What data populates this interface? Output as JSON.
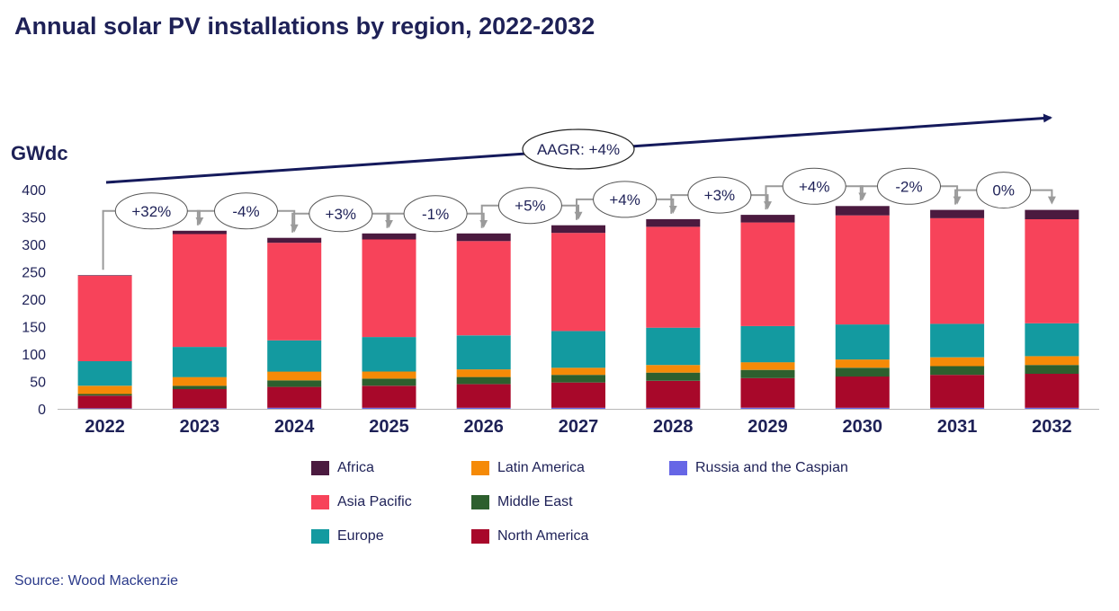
{
  "title": "Annual solar PV installations by region, 2022-2032",
  "source": "Source: Wood Mackenzie",
  "chart_data": {
    "type": "bar",
    "stacked": true,
    "title": "Annual solar PV installations by region, 2022-2032",
    "ylabel": "GWdc",
    "xlabel": "",
    "ylim": [
      0,
      400
    ],
    "yticks": [
      0,
      50,
      100,
      150,
      200,
      250,
      300,
      350,
      400
    ],
    "grid": false,
    "legend_position": "bottom",
    "categories": [
      "2022",
      "2023",
      "2024",
      "2025",
      "2026",
      "2027",
      "2028",
      "2029",
      "2030",
      "2031",
      "2032"
    ],
    "series": [
      {
        "name": "Russia and the Caspian",
        "color": "#6666e6",
        "values": [
          1,
          1,
          2,
          2,
          2,
          2,
          2,
          2,
          2,
          2,
          2
        ]
      },
      {
        "name": "North America",
        "color": "#a8082a",
        "values": [
          23,
          35,
          38,
          40,
          43,
          46,
          49,
          54,
          57,
          60,
          62
        ]
      },
      {
        "name": "Middle East",
        "color": "#2d5f2e",
        "values": [
          3,
          6,
          12,
          13,
          13,
          14,
          15,
          15,
          16,
          16,
          16
        ]
      },
      {
        "name": "Latin America",
        "color": "#f58a07",
        "values": [
          15,
          16,
          16,
          13,
          14,
          13,
          14,
          14,
          15,
          16,
          16
        ]
      },
      {
        "name": "Europe",
        "color": "#139aa0",
        "values": [
          45,
          55,
          57,
          63,
          62,
          67,
          68,
          66,
          64,
          61,
          60
        ]
      },
      {
        "name": "Asia Pacific",
        "color": "#f7435a",
        "values": [
          156,
          206,
          178,
          178,
          172,
          179,
          184,
          189,
          199,
          193,
          190
        ]
      },
      {
        "name": "Africa",
        "color": "#4b1a3f",
        "values": [
          1,
          6,
          9,
          11,
          14,
          14,
          14,
          14,
          17,
          15,
          17
        ]
      }
    ],
    "growth_labels": [
      "+32%",
      "-4%",
      "+3%",
      "-1%",
      "+5%",
      "+4%",
      "+3%",
      "+4%",
      "-2%",
      "0%"
    ],
    "trend_annotation": "AAGR: +4%"
  },
  "legend": {
    "items": [
      {
        "label": "Africa",
        "color": "#4b1a3f"
      },
      {
        "label": "Asia Pacific",
        "color": "#f7435a"
      },
      {
        "label": "Europe",
        "color": "#139aa0"
      },
      {
        "label": "Latin America",
        "color": "#f58a07"
      },
      {
        "label": "Middle East",
        "color": "#2d5f2e"
      },
      {
        "label": "North America",
        "color": "#a8082a"
      },
      {
        "label": "Russia and the Caspian",
        "color": "#6666e6"
      }
    ]
  }
}
